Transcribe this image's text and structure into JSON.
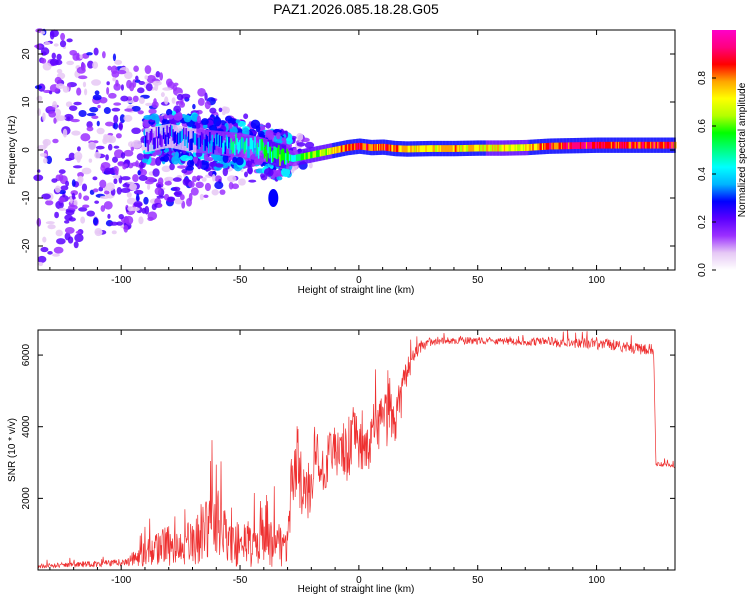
{
  "title": "PAZ1.2026.085.18.28.G05",
  "chart_data": [
    {
      "type": "heatmap",
      "name": "spectrogram",
      "xlabel": "Height of straight line (km)",
      "ylabel": "Frequency (Hz)",
      "xlim": [
        -135,
        133
      ],
      "ylim": [
        -25,
        25
      ],
      "xticks": [
        -100,
        -50,
        0,
        50,
        100
      ],
      "xtick_labels": [
        "-100",
        "-50",
        "0",
        "50",
        "100"
      ],
      "yticks": [
        -20,
        -10,
        0,
        10,
        20
      ],
      "ytick_labels": [
        "-20",
        "-10",
        "0",
        "10",
        "20"
      ],
      "colorbar": {
        "label": "Normalized spectral amplitude",
        "range": [
          0,
          1
        ],
        "ticks": [
          0.0,
          0.2,
          0.4,
          0.6,
          0.8
        ],
        "tick_labels": [
          "0.0",
          "0.2",
          "0.4",
          "0.6",
          "0.8"
        ],
        "colors": [
          "#ffffff",
          "#e6c8f5",
          "#9b30ff",
          "#5a00ff",
          "#0000ff",
          "#00b4ff",
          "#00ffff",
          "#00ff80",
          "#00ff00",
          "#b4ff00",
          "#ffff00",
          "#ffa500",
          "#ff0000",
          "#ff0080",
          "#ff00c8"
        ]
      },
      "ridge": {
        "x": [
          -90,
          -80,
          -70,
          -60,
          -50,
          -45,
          -40,
          -35,
          -30,
          -28,
          -25,
          -20,
          -15,
          -10,
          -5,
          0,
          5,
          10,
          15,
          20,
          30,
          40,
          50,
          60,
          70,
          80,
          90,
          100,
          110,
          120,
          133
        ],
        "freq": [
          2,
          3,
          2,
          1.5,
          1,
          0.5,
          0,
          -1,
          -1.5,
          -1.8,
          -1.5,
          -1,
          -0.5,
          0,
          0.5,
          0.8,
          0.5,
          0.6,
          0.3,
          0.2,
          0.3,
          0.3,
          0.4,
          0.4,
          0.5,
          0.8,
          0.9,
          1,
          1,
          1,
          1
        ],
        "amp": [
          0.2,
          0.25,
          0.3,
          0.35,
          0.45,
          0.4,
          0.5,
          0.55,
          0.5,
          0.45,
          0.55,
          0.6,
          0.65,
          0.75,
          0.8,
          0.85,
          0.8,
          0.85,
          0.8,
          0.75,
          0.72,
          0.75,
          0.72,
          0.7,
          0.7,
          0.85,
          0.88,
          0.9,
          0.85,
          0.85,
          0.85
        ]
      },
      "blob": {
        "x": -36,
        "freq": -10,
        "amp": 0.3
      }
    },
    {
      "type": "line",
      "name": "snr",
      "xlabel": "Height of straight line (km)",
      "ylabel": "SNR (10 * v/v)",
      "xlim": [
        -135,
        133
      ],
      "ylim": [
        0,
        6700
      ],
      "xticks": [
        -100,
        -50,
        0,
        50,
        100
      ],
      "xtick_labels": [
        "-100",
        "-50",
        "0",
        "50",
        "100"
      ],
      "yticks": [
        2000,
        4000,
        6000
      ],
      "ytick_labels": [
        "2000",
        "4000",
        "6000"
      ],
      "color": "#ee3030",
      "series": {
        "x": [
          -135,
          -120,
          -100,
          -95,
          -90,
          -85,
          -80,
          -75,
          -70,
          -65,
          -60,
          -58,
          -55,
          -50,
          -45,
          -40,
          -35,
          -30,
          -28,
          -26,
          -25,
          -22,
          -20,
          -18,
          -15,
          -12,
          -10,
          -8,
          -5,
          -2,
          0,
          2,
          5,
          8,
          10,
          12,
          15,
          18,
          20,
          25,
          30,
          40,
          50,
          60,
          70,
          80,
          85,
          90,
          95,
          100,
          105,
          110,
          115,
          120,
          124,
          125,
          130,
          133
        ],
        "base": [
          100,
          150,
          200,
          300,
          450,
          600,
          700,
          600,
          800,
          1100,
          1300,
          1100,
          800,
          700,
          650,
          750,
          800,
          700,
          2500,
          3100,
          2600,
          1900,
          2700,
          3300,
          3000,
          3100,
          3300,
          3200,
          3300,
          3700,
          3200,
          3500,
          3700,
          3900,
          4100,
          4200,
          4200,
          4800,
          5500,
          6200,
          6350,
          6400,
          6400,
          6400,
          6350,
          6400,
          6300,
          6350,
          6350,
          6300,
          6300,
          6250,
          6200,
          6150,
          6150,
          2950,
          2950,
          2900
        ],
        "noise": [
          60,
          80,
          100,
          200,
          350,
          450,
          600,
          500,
          700,
          900,
          1100,
          900,
          700,
          650,
          600,
          700,
          700,
          600,
          900,
          900,
          900,
          900,
          900,
          900,
          900,
          900,
          900,
          800,
          900,
          900,
          900,
          900,
          900,
          800,
          800,
          800,
          800,
          600,
          400,
          200,
          120,
          100,
          100,
          100,
          100,
          120,
          150,
          150,
          150,
          150,
          150,
          150,
          150,
          150,
          150,
          60,
          60,
          60
        ]
      }
    }
  ]
}
